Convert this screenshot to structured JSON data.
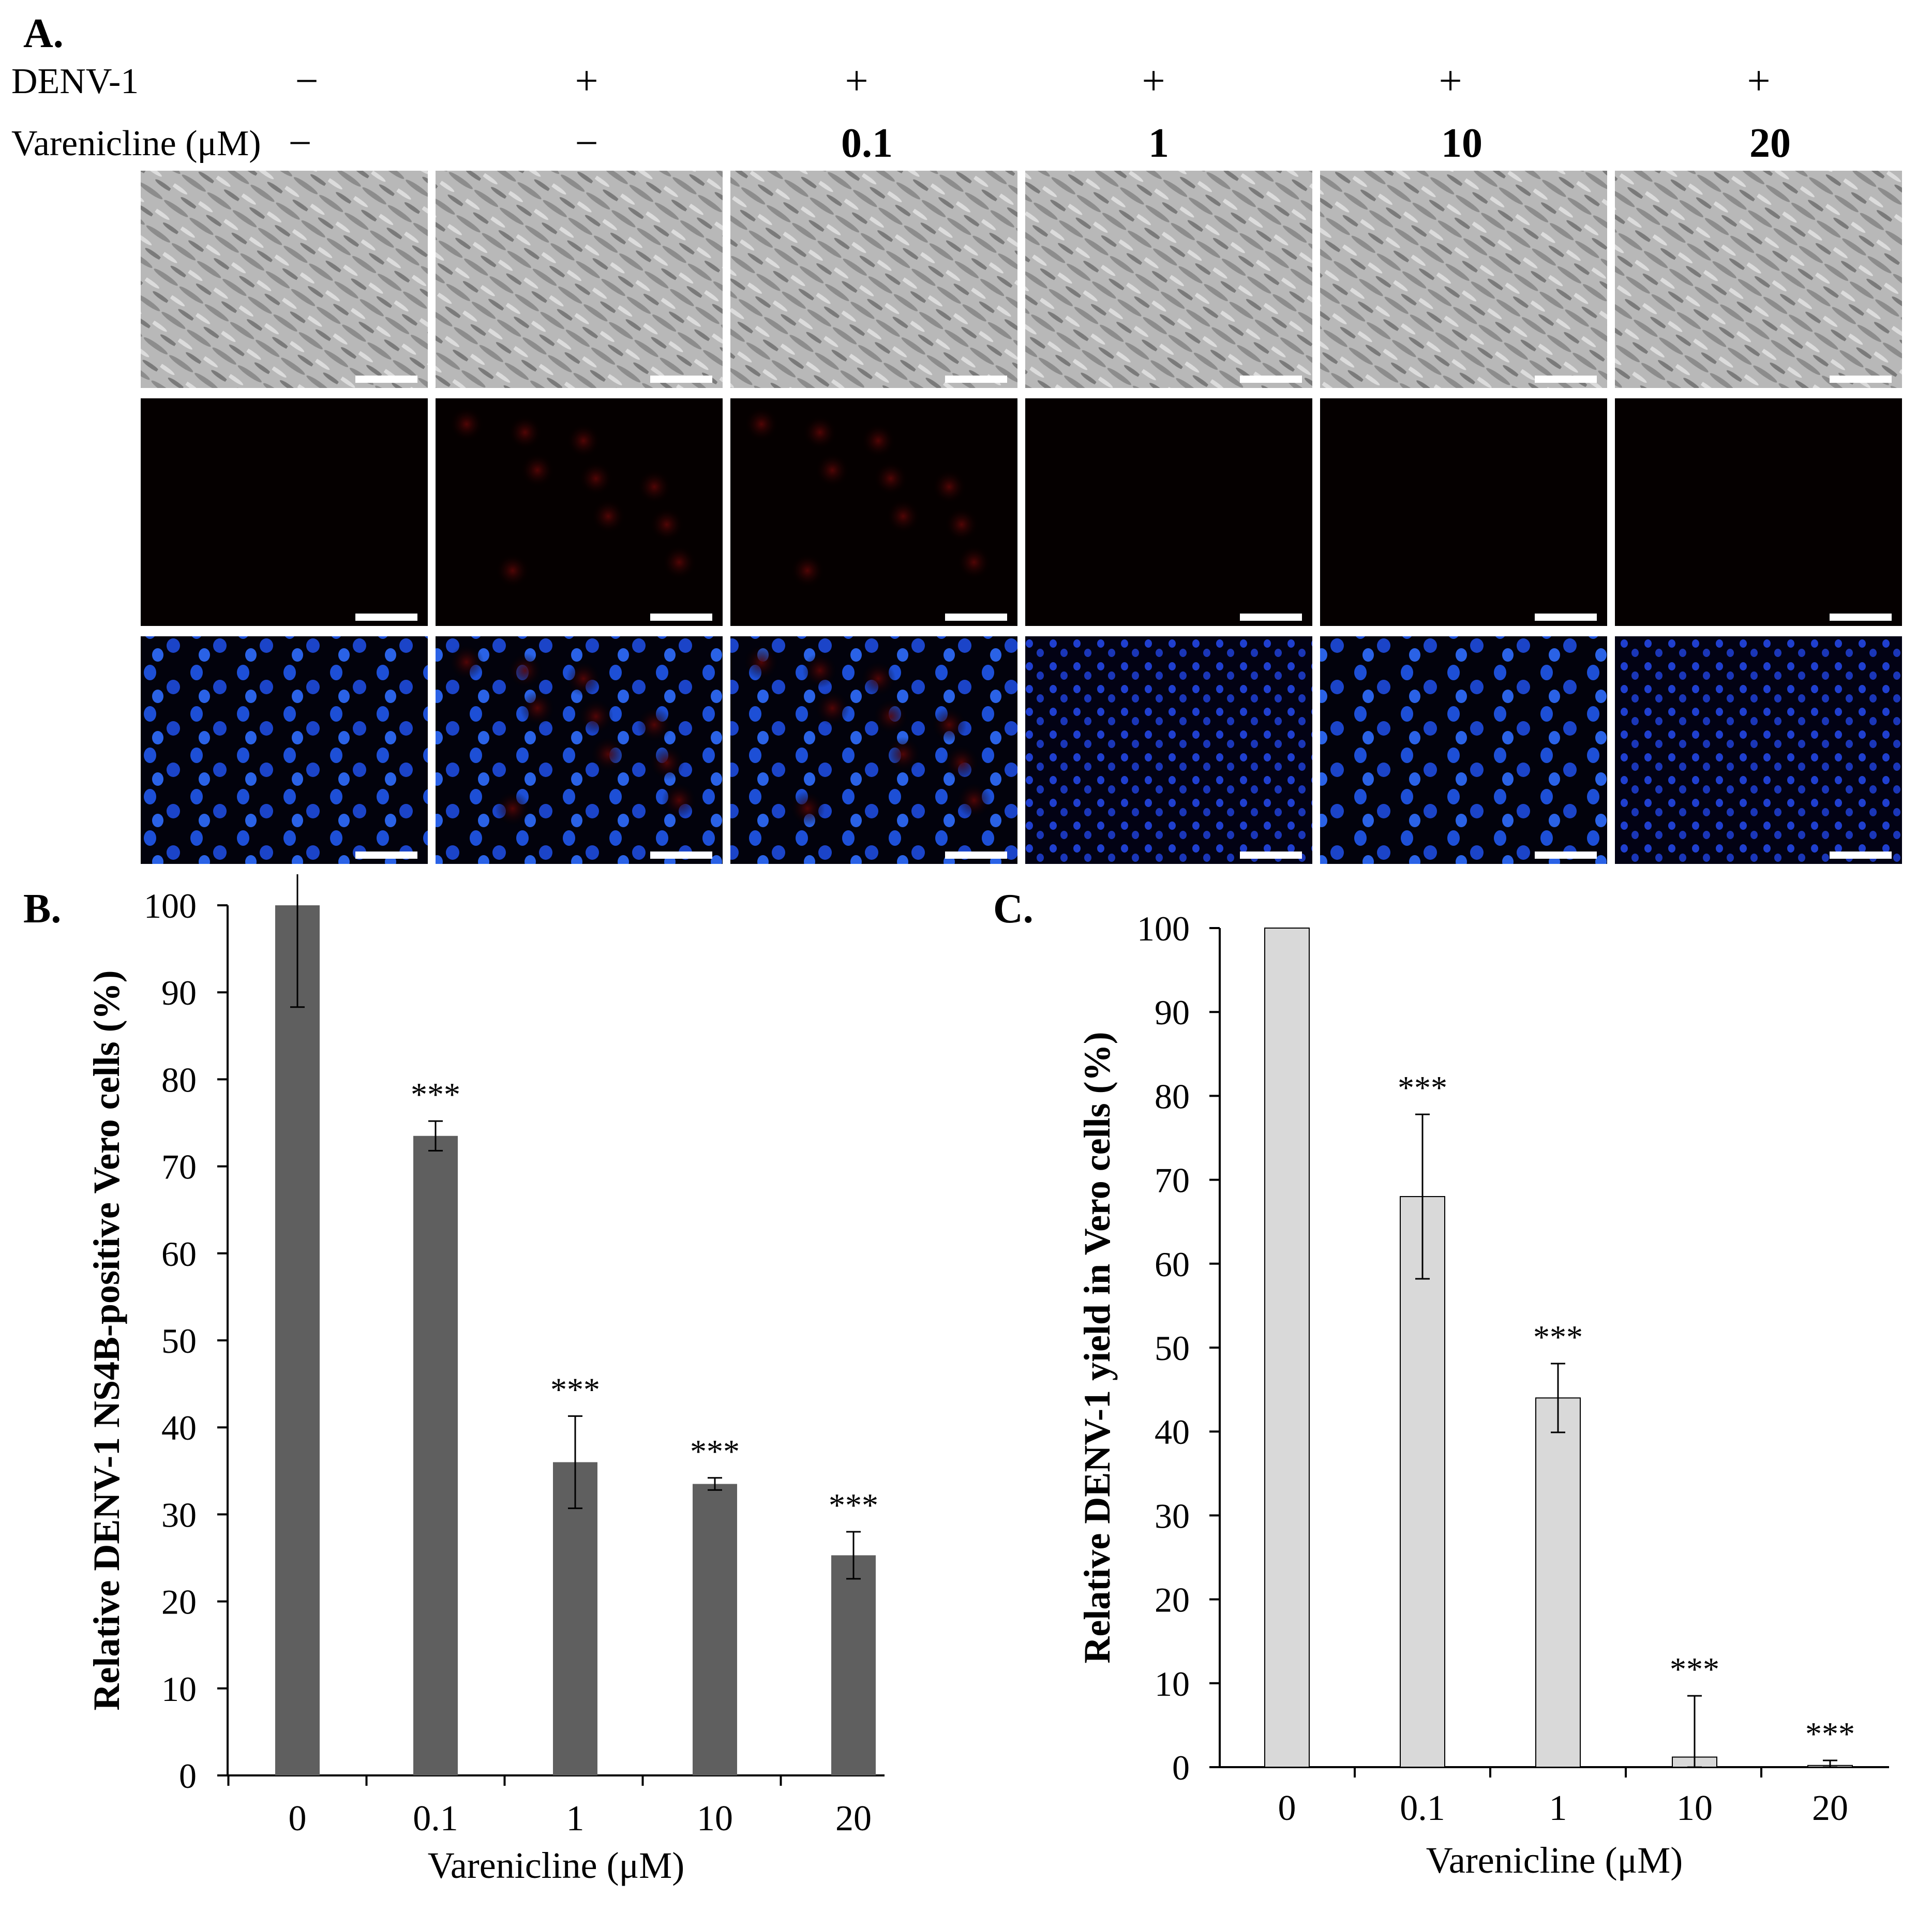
{
  "panel_a": {
    "letter": "A.",
    "denv_label": "DENV-1",
    "varenicline_label": "Varenicline (μM)",
    "columns": [
      {
        "denv": "−",
        "varenicline": "−"
      },
      {
        "denv": "+",
        "varenicline": "−"
      },
      {
        "denv": "+",
        "varenicline": "0.1"
      },
      {
        "denv": "+",
        "varenicline": "1"
      },
      {
        "denv": "+",
        "varenicline": "10"
      },
      {
        "denv": "+",
        "varenicline": "20"
      }
    ]
  },
  "chart_data": [
    {
      "panel": "B.",
      "type": "bar",
      "categories": [
        "0",
        "0.1",
        "1",
        "10",
        "20"
      ],
      "values": [
        100,
        73.5,
        36,
        33.5,
        25.3
      ],
      "errors": [
        11.7,
        1.7,
        5.3,
        0.7,
        2.7
      ],
      "significance": [
        "",
        "***",
        "***",
        "***",
        "***"
      ],
      "xlabel": "Varenicline (μM)",
      "ylabel": "Relative DENV-1 NS4B-positive Vero cells (%)",
      "ylim": [
        0,
        100
      ],
      "yticks": [
        0,
        10,
        20,
        30,
        40,
        50,
        60,
        70,
        80,
        90,
        100
      ],
      "bar_color": "#5f5f5f",
      "grid": false
    },
    {
      "panel": "C.",
      "type": "bar",
      "categories": [
        "0",
        "0.1",
        "1",
        "10",
        "20"
      ],
      "values": [
        100,
        68,
        44,
        1.2,
        0.2
      ],
      "errors": [
        0,
        9.8,
        4.1,
        7.3,
        0.6
      ],
      "significance": [
        "",
        "***",
        "***",
        "***",
        "***"
      ],
      "xlabel": "Varenicline (μM)",
      "ylabel": "Relative DENV-1 yield in Vero cells (%)",
      "ylim": [
        0,
        100
      ],
      "yticks": [
        0,
        10,
        20,
        30,
        40,
        50,
        60,
        70,
        80,
        90,
        100
      ],
      "bar_color": "#d9d9d9",
      "grid": false
    }
  ]
}
